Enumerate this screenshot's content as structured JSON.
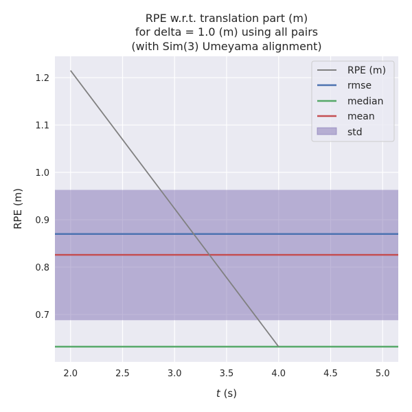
{
  "chart_data": {
    "type": "line",
    "title": [
      "RPE w.r.t. translation part (m)",
      "for delta = 1.0 (m) using all pairs",
      "(with Sim(3) Umeyama alignment)"
    ],
    "xlabel_italic": "t",
    "xlabel_rest": " (s)",
    "ylabel": "RPE (m)",
    "xlim": [
      1.85,
      5.15
    ],
    "ylim": [
      0.6,
      1.245
    ],
    "xticks": [
      2.0,
      2.5,
      3.0,
      3.5,
      4.0,
      4.5,
      5.0
    ],
    "yticks": [
      0.7,
      0.8,
      0.9,
      1.0,
      1.1,
      1.2
    ],
    "xtick_labels": [
      "2.0",
      "2.5",
      "3.0",
      "3.5",
      "4.0",
      "4.5",
      "5.0"
    ],
    "ytick_labels": [
      "0.7",
      "0.8",
      "0.9",
      "1.0",
      "1.1",
      "1.2"
    ],
    "grid": true,
    "legend_position": "top-right",
    "series": [
      {
        "name": "RPE (m)",
        "x": [
          2.0,
          4.0
        ],
        "y": [
          1.215,
          0.632
        ],
        "color": "#808080"
      }
    ],
    "stats": {
      "rmse": {
        "name": "rmse",
        "value": 0.87,
        "color": "#4c72b0"
      },
      "median": {
        "name": "median",
        "value": 0.632,
        "color": "#55a868"
      },
      "mean": {
        "name": "mean",
        "value": 0.826,
        "color": "#c44e52"
      },
      "std": {
        "name": "std",
        "lower": 0.688,
        "upper": 0.963,
        "color": "#8172b3"
      }
    },
    "legend": [
      "RPE (m)",
      "rmse",
      "median",
      "mean",
      "std"
    ],
    "colors": {
      "background": "#eaeaf2",
      "grid": "#ffffff"
    }
  }
}
